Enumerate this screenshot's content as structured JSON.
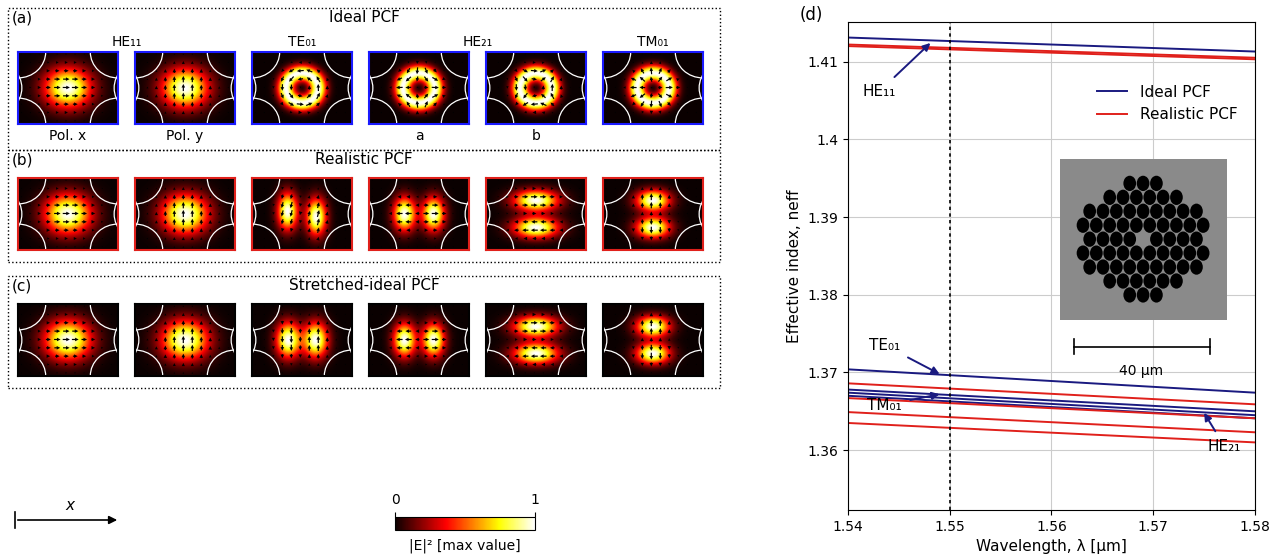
{
  "chart_data": {
    "type": "line",
    "label": "(d)",
    "xlabel": "Wavelength, λ [µm]",
    "ylabel": "Effective index, neff",
    "xlim": [
      1.54,
      1.58
    ],
    "xticks": [
      1.54,
      1.55,
      1.56,
      1.57,
      1.58
    ],
    "ylim": [
      1.3523,
      1.4151
    ],
    "yticks": [
      1.36,
      1.37,
      1.38,
      1.39,
      1.4,
      1.41
    ],
    "grid": true,
    "legend": "upper right",
    "vline_x": 1.55,
    "series": [
      {
        "name": "Ideal PCF",
        "color": "#1a1a80",
        "line_style": "solid",
        "x": [
          1.54,
          1.58
        ],
        "values": [
          [
            1.4131,
            1.4113
          ],
          [
            1.3704,
            1.3674
          ],
          [
            1.3678,
            1.365
          ],
          [
            1.3674,
            1.3645
          ],
          [
            1.367,
            1.3641
          ]
        ]
      },
      {
        "name": "Realistic PCF",
        "color": "#e0201b",
        "line_style": "solid",
        "x": [
          1.54,
          1.58
        ],
        "values": [
          [
            1.4122,
            1.4105
          ],
          [
            1.412,
            1.4103
          ],
          [
            1.3686,
            1.3659
          ],
          [
            1.3667,
            1.3641
          ],
          [
            1.3649,
            1.3623
          ],
          [
            1.3635,
            1.361
          ]
        ]
      }
    ],
    "annotations": [
      {
        "text": "HE₁₁",
        "x": 1.5431,
        "y": 1.4062,
        "arrow_x": 1.5481,
        "arrow_y": 1.4124
      },
      {
        "text": "TE₀₁",
        "x": 1.5436,
        "y": 1.3735,
        "arrow_x": 1.549,
        "arrow_y": 1.3698
      },
      {
        "text": "TM₀₁",
        "x": 1.5436,
        "y": 1.3658,
        "arrow_x": 1.549,
        "arrow_y": 1.3672
      },
      {
        "text": "HE₂₁",
        "x": 1.577,
        "y": 1.3605,
        "arrow_x": 1.575,
        "arrow_y": 1.3648
      }
    ],
    "inset": {
      "scale_bar": "40 µm"
    }
  },
  "panels": [
    {
      "label": "(a)",
      "title": "Ideal PCF",
      "mode_names": [
        "HE₁₁",
        "TE₀₁",
        "HE₂₁",
        "TM₀₁"
      ],
      "sublabels": [
        "Pol. x",
        "Pol. y",
        "a",
        "b"
      ],
      "frame_color": "#1a1aff"
    },
    {
      "label": "(b)",
      "title": "Realistic PCF",
      "frame_color": "#e0201b"
    },
    {
      "label": "(c)",
      "title": "Stretched-ideal PCF",
      "frame_color": "#000000"
    }
  ],
  "colorbar": {
    "label": "|E|² [max value]",
    "range": [
      0,
      1
    ],
    "ticks": [
      0,
      1
    ]
  },
  "axis_arrow": "x"
}
